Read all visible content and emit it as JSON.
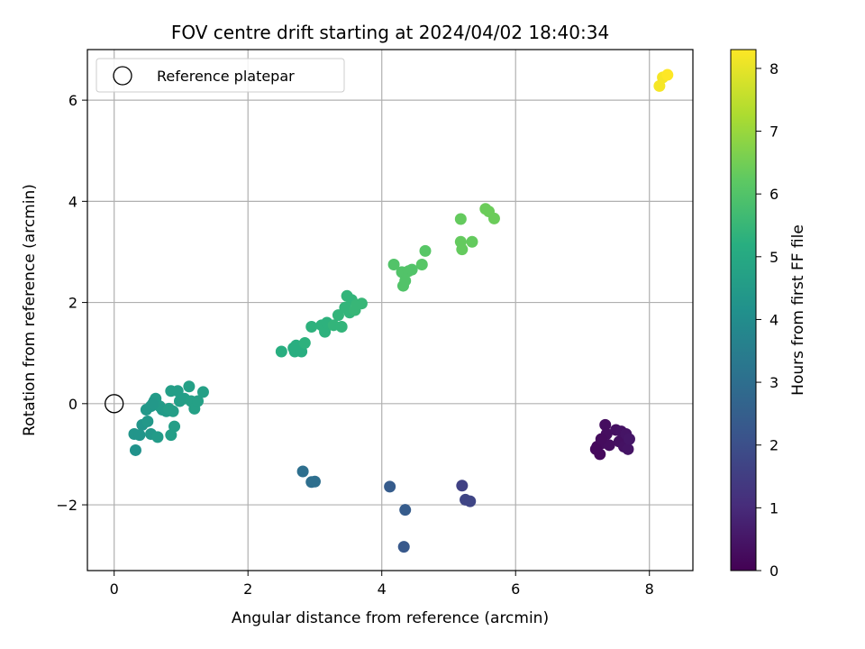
{
  "chart_data": {
    "type": "scatter",
    "title": "FOV centre drift starting at 2024/04/02 18:40:34",
    "xlabel": "Angular distance from reference (arcmin)",
    "ylabel": "Rotation from reference (arcmin)",
    "xlim": [
      -0.4,
      8.65
    ],
    "ylim": [
      -3.3,
      7.0
    ],
    "x_ticks": [
      0,
      2,
      4,
      6,
      8
    ],
    "y_ticks": [
      -2,
      0,
      2,
      4,
      6
    ],
    "grid": true,
    "legend": {
      "placement": "top-left",
      "entries": [
        "Reference platepar"
      ]
    },
    "reference_point": {
      "x": 0,
      "y": 0
    },
    "colorbar": {
      "label": "Hours from first FF file",
      "range": [
        0,
        8.3
      ],
      "ticks": [
        0,
        1,
        2,
        3,
        4,
        5,
        6,
        7,
        8
      ],
      "colormap": "viridis"
    },
    "points": [
      {
        "x": 7.22,
        "y": -0.85,
        "h": 0.2
      },
      {
        "x": 7.26,
        "y": -1.0,
        "h": 0.2
      },
      {
        "x": 7.3,
        "y": -0.78,
        "h": 0.25
      },
      {
        "x": 7.34,
        "y": -0.42,
        "h": 0.3
      },
      {
        "x": 7.36,
        "y": -0.6,
        "h": 0.3
      },
      {
        "x": 7.4,
        "y": -0.82,
        "h": 0.3
      },
      {
        "x": 7.5,
        "y": -0.52,
        "h": 0.35
      },
      {
        "x": 7.55,
        "y": -0.75,
        "h": 0.35
      },
      {
        "x": 7.58,
        "y": -0.55,
        "h": 0.4
      },
      {
        "x": 7.62,
        "y": -0.85,
        "h": 0.4
      },
      {
        "x": 7.65,
        "y": -0.6,
        "h": 0.45
      },
      {
        "x": 7.68,
        "y": -0.9,
        "h": 0.45
      },
      {
        "x": 7.7,
        "y": -0.7,
        "h": 0.5
      },
      {
        "x": 7.2,
        "y": -0.9,
        "h": 0.2
      },
      {
        "x": 7.28,
        "y": -0.7,
        "h": 0.25
      },
      {
        "x": 5.2,
        "y": -1.62,
        "h": 1.6
      },
      {
        "x": 5.25,
        "y": -1.9,
        "h": 1.7
      },
      {
        "x": 5.32,
        "y": -1.93,
        "h": 1.7
      },
      {
        "x": 4.12,
        "y": -1.64,
        "h": 2.4
      },
      {
        "x": 4.35,
        "y": -2.1,
        "h": 2.4
      },
      {
        "x": 4.33,
        "y": -2.83,
        "h": 2.3
      },
      {
        "x": 2.82,
        "y": -1.34,
        "h": 3.0
      },
      {
        "x": 2.95,
        "y": -1.55,
        "h": 3.0
      },
      {
        "x": 3.0,
        "y": -1.54,
        "h": 3.0
      },
      {
        "x": 0.32,
        "y": -0.92,
        "h": 4.2
      },
      {
        "x": 0.3,
        "y": -0.6,
        "h": 4.3
      },
      {
        "x": 0.38,
        "y": -0.62,
        "h": 4.3
      },
      {
        "x": 0.42,
        "y": -0.42,
        "h": 4.3
      },
      {
        "x": 0.5,
        "y": -0.35,
        "h": 4.4
      },
      {
        "x": 0.48,
        "y": -0.12,
        "h": 4.4
      },
      {
        "x": 0.55,
        "y": -0.05,
        "h": 4.4
      },
      {
        "x": 0.6,
        "y": 0.05,
        "h": 4.5
      },
      {
        "x": 0.62,
        "y": 0.1,
        "h": 4.5
      },
      {
        "x": 0.55,
        "y": -0.6,
        "h": 4.4
      },
      {
        "x": 0.65,
        "y": -0.66,
        "h": 4.5
      },
      {
        "x": 0.68,
        "y": -0.05,
        "h": 4.5
      },
      {
        "x": 0.72,
        "y": -0.12,
        "h": 4.5
      },
      {
        "x": 0.78,
        "y": -0.15,
        "h": 4.5
      },
      {
        "x": 0.82,
        "y": -0.1,
        "h": 4.6
      },
      {
        "x": 0.85,
        "y": 0.25,
        "h": 4.6
      },
      {
        "x": 0.88,
        "y": -0.15,
        "h": 4.6
      },
      {
        "x": 0.9,
        "y": -0.45,
        "h": 4.6
      },
      {
        "x": 0.95,
        "y": 0.25,
        "h": 4.6
      },
      {
        "x": 0.98,
        "y": 0.05,
        "h": 4.6
      },
      {
        "x": 1.05,
        "y": 0.1,
        "h": 4.6
      },
      {
        "x": 1.12,
        "y": 0.34,
        "h": 4.7
      },
      {
        "x": 1.15,
        "y": 0.05,
        "h": 4.7
      },
      {
        "x": 1.2,
        "y": -0.1,
        "h": 4.7
      },
      {
        "x": 1.25,
        "y": 0.05,
        "h": 4.7
      },
      {
        "x": 1.33,
        "y": 0.23,
        "h": 4.7
      },
      {
        "x": 0.85,
        "y": -0.62,
        "h": 4.6
      },
      {
        "x": 0.58,
        "y": 0.0,
        "h": 4.4
      },
      {
        "x": 2.5,
        "y": 1.03,
        "h": 5.2
      },
      {
        "x": 2.68,
        "y": 1.1,
        "h": 5.2
      },
      {
        "x": 2.72,
        "y": 1.15,
        "h": 5.2
      },
      {
        "x": 2.7,
        "y": 1.03,
        "h": 5.2
      },
      {
        "x": 2.8,
        "y": 1.03,
        "h": 5.2
      },
      {
        "x": 2.85,
        "y": 1.2,
        "h": 5.3
      },
      {
        "x": 2.95,
        "y": 1.52,
        "h": 5.3
      },
      {
        "x": 3.1,
        "y": 1.55,
        "h": 5.3
      },
      {
        "x": 3.15,
        "y": 1.42,
        "h": 5.3
      },
      {
        "x": 3.18,
        "y": 1.6,
        "h": 5.3
      },
      {
        "x": 3.28,
        "y": 1.55,
        "h": 5.4
      },
      {
        "x": 3.35,
        "y": 1.75,
        "h": 5.4
      },
      {
        "x": 3.4,
        "y": 1.52,
        "h": 5.4
      },
      {
        "x": 3.45,
        "y": 1.9,
        "h": 5.4
      },
      {
        "x": 3.48,
        "y": 2.13,
        "h": 5.4
      },
      {
        "x": 3.52,
        "y": 1.8,
        "h": 5.4
      },
      {
        "x": 3.55,
        "y": 2.05,
        "h": 5.4
      },
      {
        "x": 3.6,
        "y": 1.85,
        "h": 5.5
      },
      {
        "x": 3.62,
        "y": 1.95,
        "h": 5.5
      },
      {
        "x": 3.7,
        "y": 1.98,
        "h": 5.5
      },
      {
        "x": 4.18,
        "y": 2.75,
        "h": 6.0
      },
      {
        "x": 4.3,
        "y": 2.6,
        "h": 6.0
      },
      {
        "x": 4.32,
        "y": 2.33,
        "h": 6.0
      },
      {
        "x": 4.35,
        "y": 2.43,
        "h": 6.0
      },
      {
        "x": 4.4,
        "y": 2.62,
        "h": 6.0
      },
      {
        "x": 4.45,
        "y": 2.65,
        "h": 6.0
      },
      {
        "x": 4.6,
        "y": 2.75,
        "h": 6.1
      },
      {
        "x": 4.65,
        "y": 3.02,
        "h": 6.1
      },
      {
        "x": 5.18,
        "y": 3.65,
        "h": 6.3
      },
      {
        "x": 5.18,
        "y": 3.2,
        "h": 6.3
      },
      {
        "x": 5.2,
        "y": 3.05,
        "h": 6.3
      },
      {
        "x": 5.35,
        "y": 3.2,
        "h": 6.3
      },
      {
        "x": 5.55,
        "y": 3.85,
        "h": 6.4
      },
      {
        "x": 5.6,
        "y": 3.8,
        "h": 6.4
      },
      {
        "x": 5.68,
        "y": 3.66,
        "h": 6.4
      },
      {
        "x": 8.15,
        "y": 6.28,
        "h": 8.2
      },
      {
        "x": 8.2,
        "y": 6.45,
        "h": 8.2
      },
      {
        "x": 8.27,
        "y": 6.5,
        "h": 8.3
      }
    ]
  }
}
